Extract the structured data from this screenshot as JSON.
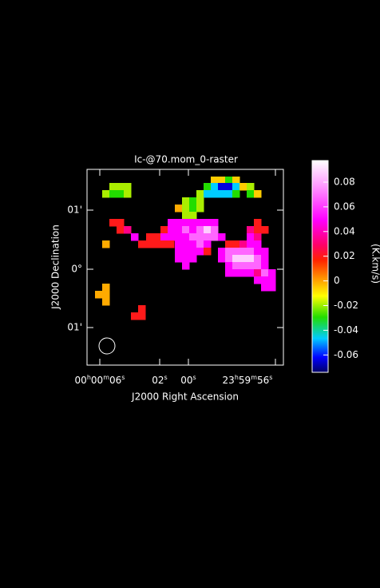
{
  "title": "Ic-@70.mom_0-raster",
  "x_axis": {
    "label": "J2000 Right Ascension",
    "ticks": [
      [
        "00",
        "h",
        "00",
        "m",
        "06",
        "s"
      ],
      [
        "02",
        "s"
      ],
      [
        "00",
        "s"
      ],
      [
        "23",
        "h",
        "59",
        "m",
        "56",
        "s"
      ]
    ]
  },
  "y_axis": {
    "label": "J2000 Declination",
    "ticks": [
      "01'",
      "0°",
      "01'"
    ]
  },
  "colorbar": {
    "label": "(K.km/s)",
    "ticks": [
      "0.08",
      "0.06",
      "0.04",
      "0.02",
      "0",
      "-0.02",
      "-0.04",
      "-0.06"
    ]
  }
}
